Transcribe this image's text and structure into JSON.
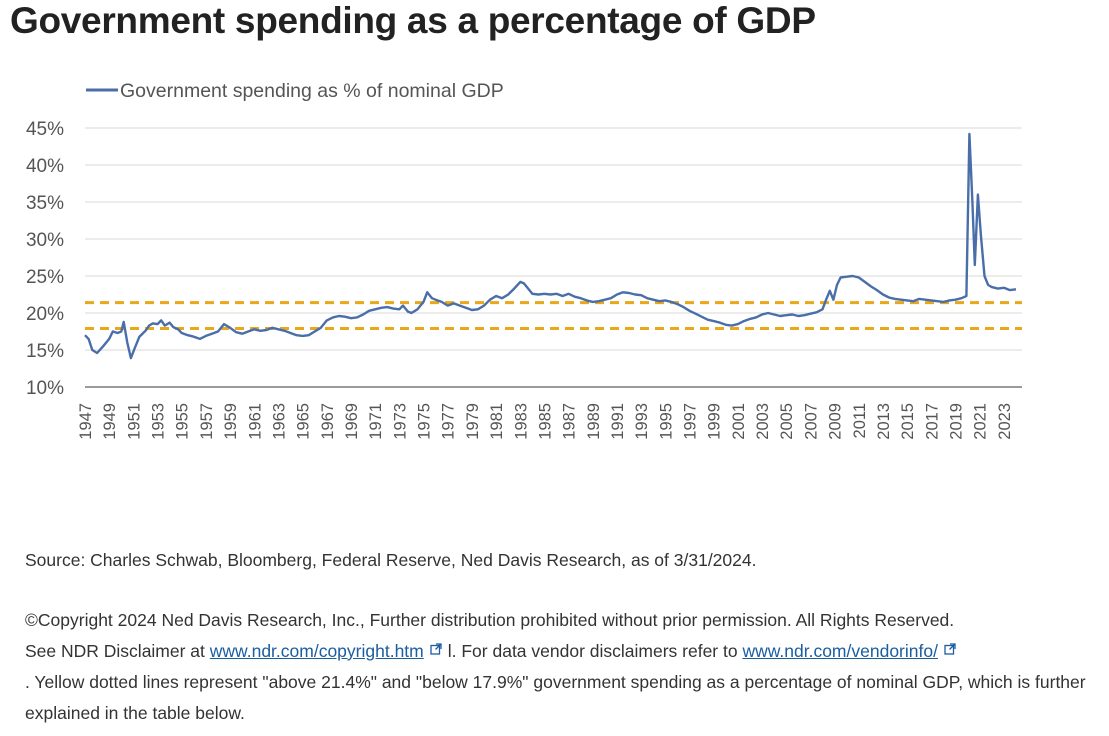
{
  "page": {
    "title": "Government spending as a percentage of GDP"
  },
  "notes": {
    "source": "Source: Charles Schwab, Bloomberg, Federal Reserve, Ned Davis Research, as of 3/31/2024.",
    "copyright_line1": "©Copyright 2024 Ned Davis Research, Inc., Further distribution prohibited without prior permission. All Rights Reserved.",
    "see_prefix": "See NDR Disclaimer at ",
    "link1": "www.ndr.com/copyright.htm",
    "mid_text": "l. For data vendor disclaimers refer to ",
    "link2": "www.ndr.com/vendorinfo/",
    "tail_text": ". Yellow dotted lines represent \"above 21.4%\" and \"below 17.9%\" government spending as a percentage of nominal GDP, which is further explained in the table below."
  },
  "chart_data": {
    "type": "line",
    "title": "",
    "xlabel": "",
    "ylabel": "",
    "legend_position": "top-left",
    "series": [
      {
        "name": "Government spending as % of nominal GDP",
        "color": "#4a6ea9",
        "points": [
          [
            1947.0,
            17.0
          ],
          [
            1947.3,
            16.5
          ],
          [
            1947.6,
            15.0
          ],
          [
            1948.0,
            14.6
          ],
          [
            1948.5,
            15.5
          ],
          [
            1949.0,
            16.5
          ],
          [
            1949.3,
            17.5
          ],
          [
            1949.7,
            17.3
          ],
          [
            1950.0,
            17.5
          ],
          [
            1950.2,
            18.8
          ],
          [
            1950.5,
            16.0
          ],
          [
            1950.8,
            13.9
          ],
          [
            1951.1,
            15.2
          ],
          [
            1951.5,
            16.8
          ],
          [
            1952.0,
            17.6
          ],
          [
            1952.3,
            18.3
          ],
          [
            1952.6,
            18.6
          ],
          [
            1953.0,
            18.5
          ],
          [
            1953.3,
            19.0
          ],
          [
            1953.6,
            18.3
          ],
          [
            1954.0,
            18.7
          ],
          [
            1954.3,
            18.1
          ],
          [
            1954.7,
            17.8
          ],
          [
            1955.0,
            17.3
          ],
          [
            1955.5,
            17.0
          ],
          [
            1956.0,
            16.8
          ],
          [
            1956.5,
            16.5
          ],
          [
            1957.0,
            16.9
          ],
          [
            1957.5,
            17.2
          ],
          [
            1958.0,
            17.5
          ],
          [
            1958.5,
            18.5
          ],
          [
            1959.0,
            18.0
          ],
          [
            1959.5,
            17.4
          ],
          [
            1960.0,
            17.2
          ],
          [
            1960.5,
            17.5
          ],
          [
            1961.0,
            17.8
          ],
          [
            1961.5,
            17.6
          ],
          [
            1962.0,
            17.7
          ],
          [
            1962.5,
            18.0
          ],
          [
            1963.0,
            17.8
          ],
          [
            1963.5,
            17.6
          ],
          [
            1964.0,
            17.3
          ],
          [
            1964.5,
            17.0
          ],
          [
            1965.0,
            16.9
          ],
          [
            1965.5,
            17.0
          ],
          [
            1966.0,
            17.5
          ],
          [
            1966.5,
            18.0
          ],
          [
            1967.0,
            19.0
          ],
          [
            1967.5,
            19.4
          ],
          [
            1968.0,
            19.6
          ],
          [
            1968.5,
            19.5
          ],
          [
            1969.0,
            19.3
          ],
          [
            1969.5,
            19.4
          ],
          [
            1970.0,
            19.8
          ],
          [
            1970.5,
            20.3
          ],
          [
            1971.0,
            20.5
          ],
          [
            1971.5,
            20.7
          ],
          [
            1972.0,
            20.8
          ],
          [
            1972.5,
            20.6
          ],
          [
            1973.0,
            20.5
          ],
          [
            1973.3,
            21.0
          ],
          [
            1973.7,
            20.2
          ],
          [
            1974.0,
            20.0
          ],
          [
            1974.5,
            20.5
          ],
          [
            1975.0,
            21.5
          ],
          [
            1975.3,
            22.8
          ],
          [
            1975.7,
            22.0
          ],
          [
            1976.0,
            21.8
          ],
          [
            1976.5,
            21.5
          ],
          [
            1977.0,
            21.0
          ],
          [
            1977.5,
            21.3
          ],
          [
            1978.0,
            21.0
          ],
          [
            1978.5,
            20.7
          ],
          [
            1979.0,
            20.4
          ],
          [
            1979.5,
            20.5
          ],
          [
            1980.0,
            21.0
          ],
          [
            1980.5,
            21.8
          ],
          [
            1981.0,
            22.3
          ],
          [
            1981.5,
            22.0
          ],
          [
            1982.0,
            22.5
          ],
          [
            1982.5,
            23.3
          ],
          [
            1983.0,
            24.2
          ],
          [
            1983.3,
            24.0
          ],
          [
            1983.7,
            23.2
          ],
          [
            1984.0,
            22.6
          ],
          [
            1984.5,
            22.5
          ],
          [
            1985.0,
            22.6
          ],
          [
            1985.5,
            22.5
          ],
          [
            1986.0,
            22.6
          ],
          [
            1986.5,
            22.3
          ],
          [
            1987.0,
            22.6
          ],
          [
            1987.5,
            22.2
          ],
          [
            1988.0,
            22.0
          ],
          [
            1988.5,
            21.7
          ],
          [
            1989.0,
            21.5
          ],
          [
            1989.5,
            21.6
          ],
          [
            1990.0,
            21.8
          ],
          [
            1990.5,
            22.0
          ],
          [
            1991.0,
            22.5
          ],
          [
            1991.5,
            22.8
          ],
          [
            1992.0,
            22.7
          ],
          [
            1992.5,
            22.5
          ],
          [
            1993.0,
            22.4
          ],
          [
            1993.5,
            22.0
          ],
          [
            1994.0,
            21.8
          ],
          [
            1994.5,
            21.6
          ],
          [
            1995.0,
            21.7
          ],
          [
            1995.5,
            21.5
          ],
          [
            1996.0,
            21.2
          ],
          [
            1996.5,
            20.8
          ],
          [
            1997.0,
            20.3
          ],
          [
            1997.5,
            19.9
          ],
          [
            1998.0,
            19.5
          ],
          [
            1998.5,
            19.1
          ],
          [
            1999.0,
            18.9
          ],
          [
            1999.5,
            18.7
          ],
          [
            2000.0,
            18.4
          ],
          [
            2000.5,
            18.3
          ],
          [
            2001.0,
            18.5
          ],
          [
            2001.5,
            18.9
          ],
          [
            2002.0,
            19.2
          ],
          [
            2002.5,
            19.4
          ],
          [
            2003.0,
            19.8
          ],
          [
            2003.5,
            20.0
          ],
          [
            2004.0,
            19.8
          ],
          [
            2004.5,
            19.6
          ],
          [
            2005.0,
            19.7
          ],
          [
            2005.5,
            19.8
          ],
          [
            2006.0,
            19.6
          ],
          [
            2006.5,
            19.7
          ],
          [
            2007.0,
            19.9
          ],
          [
            2007.5,
            20.1
          ],
          [
            2008.0,
            20.5
          ],
          [
            2008.3,
            21.8
          ],
          [
            2008.6,
            23.0
          ],
          [
            2008.9,
            21.8
          ],
          [
            2009.2,
            23.8
          ],
          [
            2009.5,
            24.8
          ],
          [
            2010.0,
            24.9
          ],
          [
            2010.5,
            25.0
          ],
          [
            2011.0,
            24.8
          ],
          [
            2011.5,
            24.2
          ],
          [
            2012.0,
            23.6
          ],
          [
            2012.5,
            23.1
          ],
          [
            2013.0,
            22.5
          ],
          [
            2013.5,
            22.1
          ],
          [
            2014.0,
            21.9
          ],
          [
            2014.5,
            21.8
          ],
          [
            2015.0,
            21.7
          ],
          [
            2015.5,
            21.6
          ],
          [
            2016.0,
            21.9
          ],
          [
            2016.5,
            21.8
          ],
          [
            2017.0,
            21.7
          ],
          [
            2017.5,
            21.6
          ],
          [
            2018.0,
            21.5
          ],
          [
            2018.5,
            21.7
          ],
          [
            2019.0,
            21.8
          ],
          [
            2019.5,
            22.0
          ],
          [
            2019.9,
            22.3
          ],
          [
            2020.15,
            44.2
          ],
          [
            2020.4,
            35.0
          ],
          [
            2020.6,
            26.5
          ],
          [
            2020.85,
            36.0
          ],
          [
            2021.1,
            30.5
          ],
          [
            2021.4,
            25.0
          ],
          [
            2021.7,
            23.8
          ],
          [
            2022.0,
            23.5
          ],
          [
            2022.5,
            23.3
          ],
          [
            2023.0,
            23.4
          ],
          [
            2023.5,
            23.1
          ],
          [
            2024.0,
            23.2
          ]
        ]
      }
    ],
    "reference_lines": [
      {
        "label": "above 21.4%",
        "value": 21.4,
        "color": "#e8a817"
      },
      {
        "label": "below 17.9%",
        "value": 17.9,
        "color": "#e8a817"
      }
    ],
    "x_range": [
      1947,
      2024.5
    ],
    "ylim": [
      10,
      45
    ],
    "yticks": [
      10,
      15,
      20,
      25,
      30,
      35,
      40,
      45
    ],
    "ytick_labels": [
      "10%",
      "15%",
      "20%",
      "25%",
      "30%",
      "35%",
      "40%",
      "45%"
    ],
    "xticks": [
      1947,
      1949,
      1951,
      1953,
      1955,
      1957,
      1959,
      1961,
      1963,
      1965,
      1967,
      1969,
      1971,
      1973,
      1975,
      1977,
      1979,
      1981,
      1983,
      1985,
      1987,
      1989,
      1991,
      1993,
      1995,
      1997,
      1999,
      2001,
      2003,
      2005,
      2007,
      2009,
      2011,
      2013,
      2015,
      2017,
      2019,
      2021,
      2023
    ],
    "grid": true
  }
}
